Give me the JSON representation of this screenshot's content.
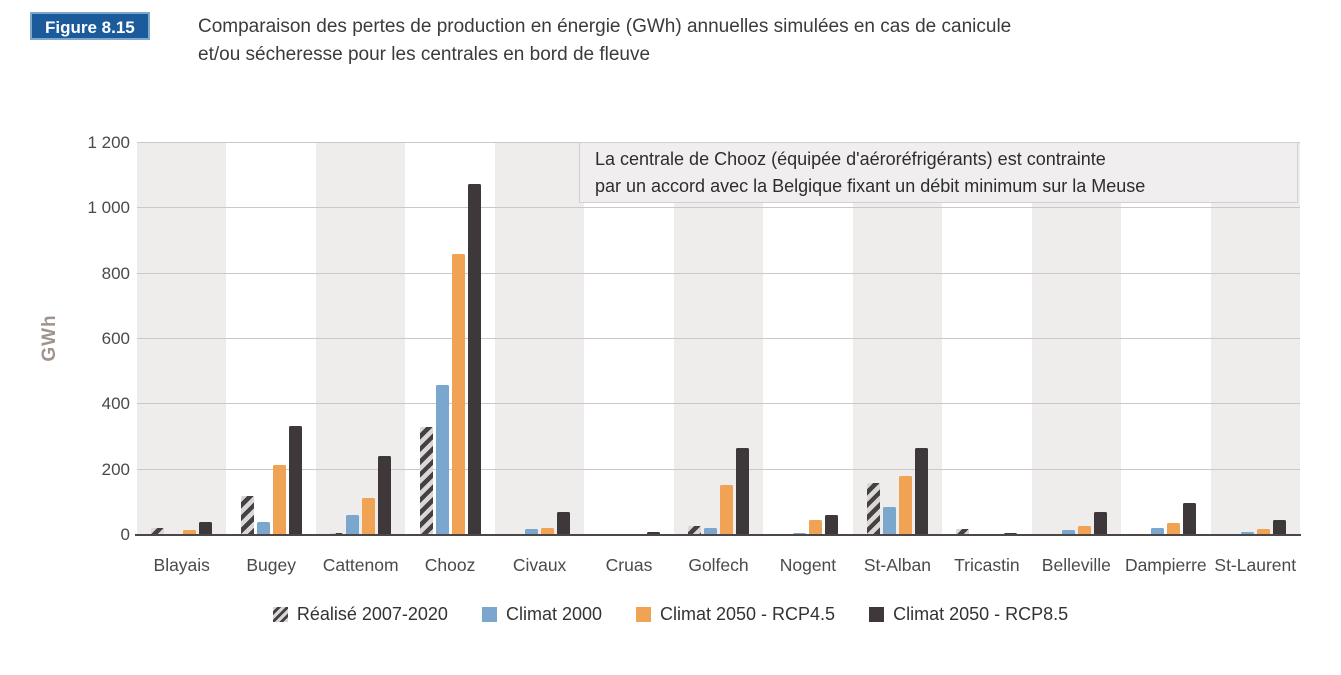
{
  "figure": {
    "badge": "Figure 8.15",
    "title_line1": "Comparaison des pertes de production en énergie (GWh) annuelles simulées en cas de canicule",
    "title_line2": "et/ou sécheresse pour les centrales en bord de fleuve"
  },
  "annotation": {
    "line1": "La centrale de Chooz (équipée d'aéroréfrigérants) est contrainte",
    "line2": "par un accord avec la Belgique fixant un débit minimum sur la Meuse"
  },
  "chart_data": {
    "type": "bar",
    "title": "Comparaison des pertes de production en énergie (GWh) annuelles simulées en cas de canicule et/ou sécheresse pour les centrales en bord de fleuve",
    "ylabel": "GWh",
    "ylim": [
      0,
      1200
    ],
    "ytick_interval": 200,
    "ytick_labels": [
      "0",
      "200",
      "400",
      "600",
      "800",
      "1 000",
      "1 200"
    ],
    "grid": true,
    "legend_position": "bottom",
    "background_bands": "alternating gray/white per category, first band gray",
    "categories": [
      "Blayais",
      "Bugey",
      "Cattenom",
      "Chooz",
      "Civaux",
      "Cruas",
      "Golfech",
      "Nogent",
      "St-Alban",
      "Tricastin",
      "Belleville",
      "Dampierre",
      "St-Laurent"
    ],
    "series": [
      {
        "name": "Réalisé 2007-2020",
        "pattern": "diagonal-stripes",
        "color": "#d9d7d7",
        "stripe_color": "#474041",
        "values": [
          20,
          120,
          7,
          330,
          2,
          1,
          27,
          1,
          160,
          18,
          1,
          2,
          1
        ]
      },
      {
        "name": "Climat 2000",
        "color": "#7ba6ce",
        "values": [
          2,
          40,
          60,
          460,
          18,
          2,
          22,
          5,
          85,
          1,
          15,
          21,
          10
        ]
      },
      {
        "name": "Climat 2050 - RCP4.5",
        "color": "#f0a355",
        "values": [
          15,
          215,
          112,
          860,
          22,
          3,
          152,
          45,
          180,
          2,
          27,
          38,
          18
        ]
      },
      {
        "name": "Climat 2050 - RCP8.5",
        "color": "#3f383a",
        "values": [
          40,
          335,
          243,
          1075,
          70,
          8,
          267,
          60,
          265,
          6,
          70,
          98,
          45
        ]
      }
    ]
  },
  "colors": {
    "badge_background": "#1b5b9c",
    "badge_border": "#7fa8cc",
    "band_gray": "#efecec",
    "gridline": "#ccc8c8",
    "axis": "#4c4646",
    "tick_text": "#4a4a4a",
    "ylabel_text": "#a0938d",
    "title_text": "#3b3b3b"
  }
}
